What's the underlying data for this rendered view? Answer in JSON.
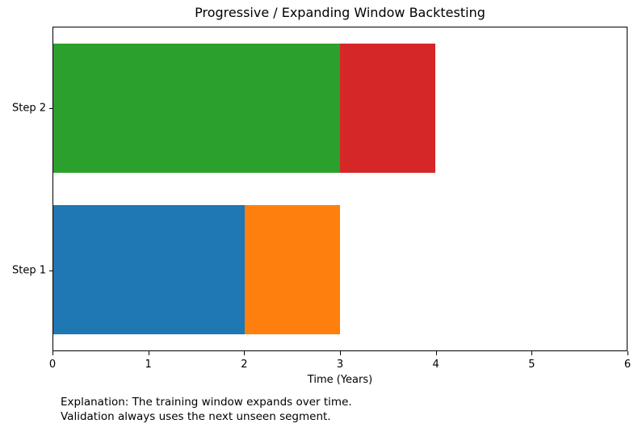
{
  "chart_data": {
    "type": "bar",
    "orientation": "horizontal",
    "title": "Progressive / Expanding Window Backtesting",
    "xlabel": "Time (Years)",
    "ylabel": "",
    "xlim": [
      0,
      6
    ],
    "x_ticks": [
      0,
      1,
      2,
      3,
      4,
      5,
      6
    ],
    "grid": false,
    "legend": false,
    "categories_top_to_bottom": [
      "Step 2",
      "Step 1"
    ],
    "rows": [
      {
        "label": "Step 2",
        "segments": [
          {
            "start": 0,
            "end": 3,
            "color": "#2ca02c"
          },
          {
            "start": 3,
            "end": 4,
            "color": "#d62728"
          }
        ]
      },
      {
        "label": "Step 1",
        "segments": [
          {
            "start": 0,
            "end": 2,
            "color": "#1f77b4"
          },
          {
            "start": 2,
            "end": 3,
            "color": "#ff7f0e"
          }
        ]
      }
    ],
    "annotation": {
      "line1": "Explanation: The training window expands over time.",
      "line2": "Validation always uses the next unseen segment."
    }
  }
}
